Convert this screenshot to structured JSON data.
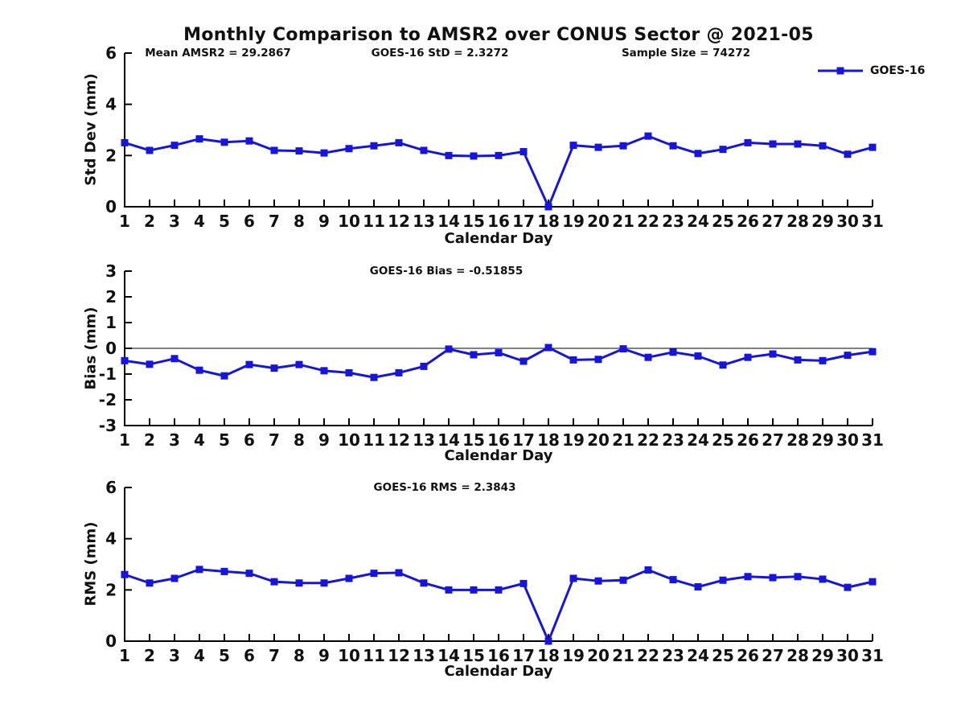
{
  "title": "Monthly Comparison to AMSR2 over CONUS Sector @ 2021-05",
  "background": "#ffffff",
  "text_color": "#111111",
  "legend": {
    "label": "GOES-16",
    "color": "#1515dd",
    "position": "top-right"
  },
  "chart_data": [
    {
      "id": "std-dev",
      "type": "line",
      "title": "",
      "annotations": [
        "Mean AMSR2 = 29.2867",
        "GOES-16 StD = 2.3272",
        "Sample Size = 74272"
      ],
      "xlabel": "Calendar Day",
      "ylabel": "Std Dev (mm)",
      "ylim": [
        0,
        6
      ],
      "yticks": [
        0,
        2,
        4,
        6
      ],
      "zero_line": false,
      "grid": false,
      "x": [
        1,
        2,
        3,
        4,
        5,
        6,
        7,
        8,
        9,
        10,
        11,
        12,
        13,
        14,
        15,
        16,
        17,
        18,
        19,
        20,
        21,
        22,
        23,
        24,
        25,
        26,
        27,
        28,
        29,
        30,
        31
      ],
      "series": [
        {
          "name": "GOES-16",
          "color": "#1515dd",
          "marker": "square",
          "values": [
            2.5,
            2.2,
            2.4,
            2.65,
            2.52,
            2.57,
            2.2,
            2.18,
            2.1,
            2.27,
            2.38,
            2.5,
            2.2,
            2.0,
            1.98,
            2.0,
            2.15,
            0.0,
            2.4,
            2.32,
            2.38,
            2.76,
            2.38,
            2.08,
            2.24,
            2.5,
            2.45,
            2.45,
            2.38,
            2.05,
            2.32
          ]
        }
      ]
    },
    {
      "id": "bias",
      "type": "line",
      "title": "GOES-16 Bias = -0.51855",
      "annotations": [],
      "xlabel": "Calendar Day",
      "ylabel": "Bias (mm)",
      "ylim": [
        -3,
        3
      ],
      "yticks": [
        -3,
        -2,
        -1,
        0,
        1,
        2,
        3
      ],
      "zero_line": true,
      "grid": false,
      "x": [
        1,
        2,
        3,
        4,
        5,
        6,
        7,
        8,
        9,
        10,
        11,
        12,
        13,
        14,
        15,
        16,
        17,
        18,
        19,
        20,
        21,
        22,
        23,
        24,
        25,
        26,
        27,
        28,
        29,
        30,
        31
      ],
      "series": [
        {
          "name": "GOES-16",
          "color": "#1515dd",
          "marker": "square",
          "values": [
            -0.48,
            -0.62,
            -0.4,
            -0.85,
            -1.07,
            -0.63,
            -0.77,
            -0.63,
            -0.87,
            -0.95,
            -1.13,
            -0.95,
            -0.7,
            -0.03,
            -0.25,
            -0.17,
            -0.5,
            0.03,
            -0.45,
            -0.43,
            -0.02,
            -0.35,
            -0.15,
            -0.3,
            -0.65,
            -0.35,
            -0.22,
            -0.45,
            -0.48,
            -0.27,
            -0.13
          ]
        }
      ]
    },
    {
      "id": "rms",
      "type": "line",
      "title": "GOES-16 RMS = 2.3843",
      "annotations": [],
      "xlabel": "Calendar Day",
      "ylabel": "RMS (mm)",
      "ylim": [
        0,
        6
      ],
      "yticks": [
        0,
        2,
        4,
        6
      ],
      "zero_line": false,
      "grid": false,
      "x": [
        1,
        2,
        3,
        4,
        5,
        6,
        7,
        8,
        9,
        10,
        11,
        12,
        13,
        14,
        15,
        16,
        17,
        18,
        19,
        20,
        21,
        22,
        23,
        24,
        25,
        26,
        27,
        28,
        29,
        30,
        31
      ],
      "series": [
        {
          "name": "GOES-16",
          "color": "#1515dd",
          "marker": "square",
          "values": [
            2.6,
            2.27,
            2.45,
            2.8,
            2.72,
            2.65,
            2.32,
            2.27,
            2.27,
            2.45,
            2.65,
            2.67,
            2.27,
            2.0,
            2.0,
            2.0,
            2.25,
            0.0,
            2.45,
            2.35,
            2.38,
            2.78,
            2.4,
            2.12,
            2.38,
            2.52,
            2.48,
            2.52,
            2.42,
            2.1,
            2.32
          ]
        }
      ]
    }
  ]
}
